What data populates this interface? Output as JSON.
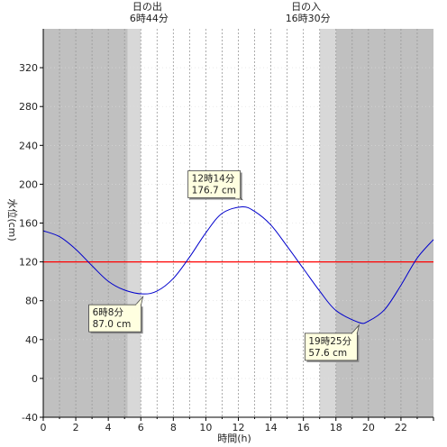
{
  "chart_data": {
    "type": "line",
    "xlabel": "時間(h)",
    "ylabel": "水位(cm)",
    "xlim": [
      0,
      24
    ],
    "ylim": [
      -40,
      360
    ],
    "xticks": [
      0,
      2,
      4,
      6,
      8,
      10,
      12,
      14,
      16,
      18,
      20,
      22
    ],
    "yticks": [
      -40,
      0,
      40,
      80,
      120,
      160,
      200,
      240,
      280,
      320
    ],
    "grid": true,
    "reference_line": {
      "y": 120,
      "color": "#ff0000"
    },
    "series": [
      {
        "color": "#0000cc",
        "x": [
          0,
          1,
          2,
          3,
          4,
          5,
          6.13,
          7,
          8,
          9,
          10,
          11,
          12.23,
          13,
          14,
          15,
          16,
          17,
          18,
          19.42,
          20,
          21,
          22,
          23,
          24
        ],
        "y": [
          152,
          146,
          133,
          116,
          100,
          91,
          87.0,
          90,
          103,
          125,
          150,
          170,
          176.7,
          172,
          158,
          136,
          113,
          90,
          70,
          57.6,
          59,
          71,
          96,
          124,
          143
        ]
      }
    ],
    "shading": {
      "night_color": "#c0c0c0",
      "twilight_color": "#d8d8d8",
      "day_color": "#ffffff",
      "night_before": [
        0,
        5.2
      ],
      "twilight_morning": [
        5.2,
        6.0
      ],
      "twilight_evening": [
        17.0,
        18.0
      ],
      "night_after": [
        18.0,
        24
      ]
    },
    "sun_events": [
      {
        "label": "日の出",
        "time_label": "6時44分",
        "x": 6.73
      },
      {
        "label": "日の入",
        "time_label": "16時30分",
        "x": 16.5
      }
    ],
    "annotations": [
      {
        "line1": "6時8分",
        "line2": "87.0 cm",
        "x": 6.13,
        "y": 87.0,
        "placement": "below-left"
      },
      {
        "line1": "12時14分",
        "line2": "176.7 cm",
        "x": 12.23,
        "y": 176.7,
        "placement": "above-left"
      },
      {
        "line1": "19時25分",
        "line2": "57.6 cm",
        "x": 19.42,
        "y": 57.6,
        "placement": "below-left"
      }
    ]
  }
}
